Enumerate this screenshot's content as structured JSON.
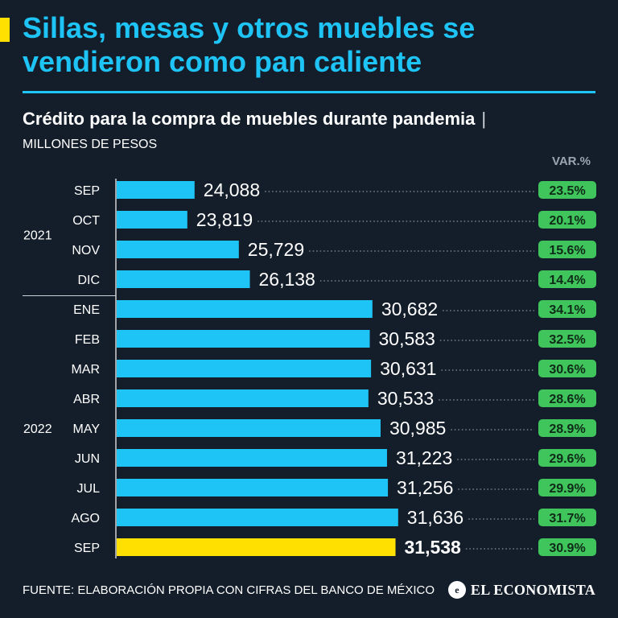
{
  "header": {
    "title": "Sillas, mesas y otros muebles se vendieron como pan caliente",
    "subtitle": "Crédito para la compra de muebles durante pandemia",
    "subtitle_separator": "|",
    "units": "MILLONES DE PESOS",
    "var_label": "VAR.%"
  },
  "footer": {
    "source": "FUENTE: ELABORACIÓN PROPIA CON CIFRAS DEL BANCO DE MÉXICO",
    "brand": "EL ECONOMISTA",
    "brand_icon": "globe-e-icon"
  },
  "colors": {
    "bar": "#1ec4f5",
    "highlight_bar": "#ffe000",
    "badge": "#3fc55b",
    "badge_text": "#0f2a18",
    "dots": "#8a96a3"
  },
  "chart_data": {
    "type": "bar",
    "orientation": "horizontal",
    "title": "Crédito para la compra de muebles durante pandemia",
    "ylabel": "MILLONES DE PESOS",
    "groups": [
      {
        "label": "2021",
        "start": 0,
        "end": 3
      },
      {
        "label": "2022",
        "start": 4,
        "end": 12
      }
    ],
    "categories": [
      "SEP",
      "OCT",
      "NOV",
      "DIC",
      "ENE",
      "FEB",
      "MAR",
      "ABR",
      "MAY",
      "JUN",
      "JUL",
      "AGO",
      "SEP"
    ],
    "values": [
      24088,
      23819,
      25729,
      26138,
      30682,
      30583,
      30631,
      30533,
      30985,
      31223,
      31256,
      31636,
      31538
    ],
    "value_labels": [
      "24,088",
      "23,819",
      "25,729",
      "26,138",
      "30,682",
      "30,583",
      "30,631",
      "30,533",
      "30,985",
      "31,223",
      "31,256",
      "31,636",
      "31,538"
    ],
    "variation": [
      "23.5%",
      "20.1%",
      "15.6%",
      "14.4%",
      "34.1%",
      "32.5%",
      "30.6%",
      "28.6%",
      "28.9%",
      "29.6%",
      "29.9%",
      "31.7%",
      "30.9%"
    ],
    "highlight_index": 12,
    "xlim": [
      21200,
      32000
    ]
  }
}
